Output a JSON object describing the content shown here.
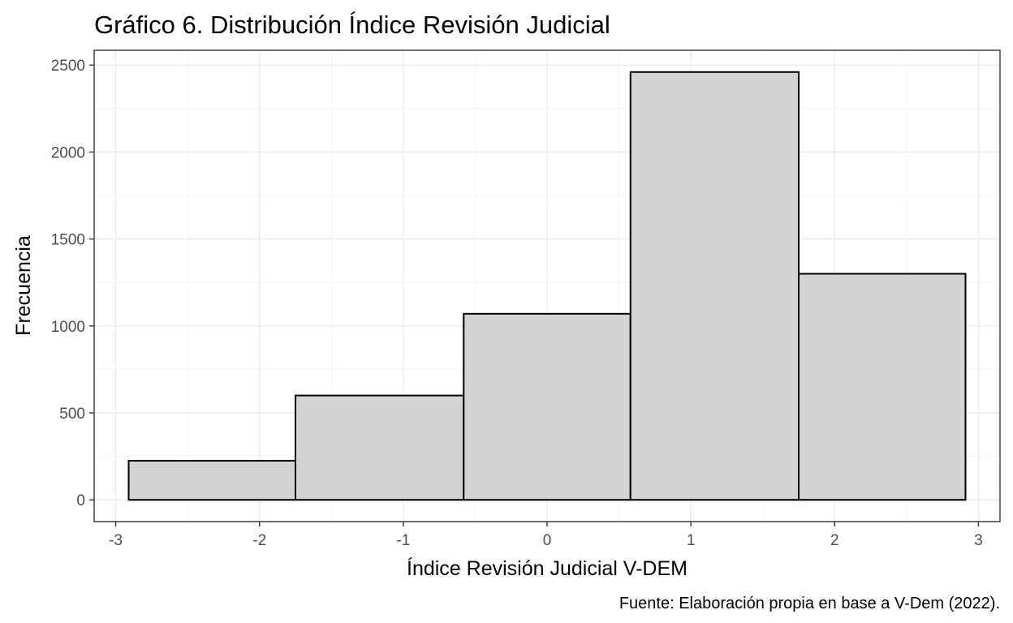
{
  "chart_data": {
    "type": "bar",
    "title": "Gráfico 6. Distribución Índice Revisión Judicial",
    "xlabel": "Índice Revisión Judicial V-DEM",
    "ylabel": "Frecuencia",
    "caption": "Fuente: Elaboración propia en base a V-Dem (2022).",
    "bar_fill": "#d3d3d3",
    "bar_stroke": "#000000",
    "grid": true,
    "xlim": [
      -3.15,
      3.15
    ],
    "ylim": [
      -125,
      2585
    ],
    "x_ticks": [
      -3,
      -2,
      -1,
      0,
      1,
      2,
      3
    ],
    "x_tick_labels": [
      "-3",
      "-2",
      "-1",
      "0",
      "1",
      "2",
      "3"
    ],
    "y_ticks": [
      0,
      500,
      1000,
      1500,
      2000,
      2500
    ],
    "y_tick_labels": [
      "0",
      "500",
      "1000",
      "1500",
      "2000",
      "2500"
    ],
    "bins": [
      {
        "x0": -2.91,
        "x1": -1.75,
        "count": 225
      },
      {
        "x0": -1.75,
        "x1": -0.58,
        "count": 600
      },
      {
        "x0": -0.58,
        "x1": 0.58,
        "count": 1070
      },
      {
        "x0": 0.58,
        "x1": 1.75,
        "count": 2460
      },
      {
        "x0": 1.75,
        "x1": 2.91,
        "count": 1300
      }
    ]
  }
}
